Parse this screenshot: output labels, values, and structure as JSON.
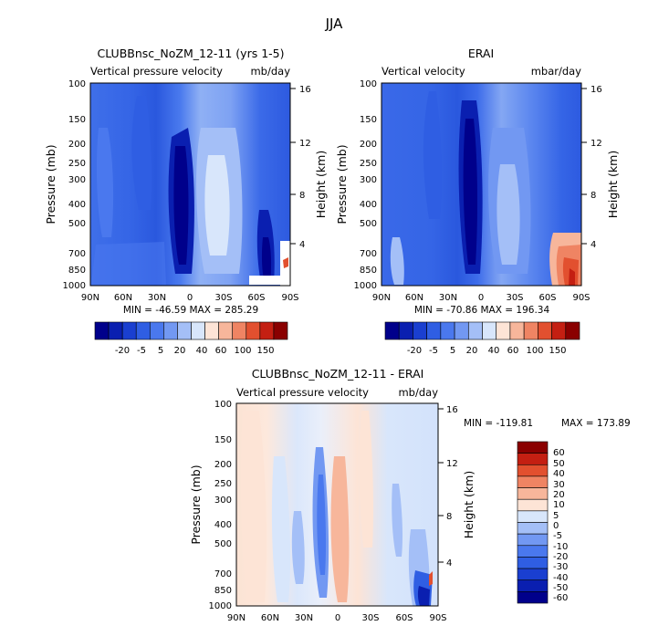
{
  "figure": {
    "title": "JJA"
  },
  "colors": {
    "palette_13": [
      "#00008b",
      "#0a1fb0",
      "#1a3fd0",
      "#2f5ee3",
      "#4a78ee",
      "#7298f2",
      "#a4bff7",
      "#d8e6fb",
      "#fde4d6",
      "#f7b69b",
      "#ef8463",
      "#e2502f",
      "#c41f12",
      "#8a0000"
    ],
    "palette_diff": [
      "#00008b",
      "#0a1fb0",
      "#1a3fd0",
      "#2f5ee3",
      "#4a78ee",
      "#7298f2",
      "#a4bff7",
      "#d8e6fb",
      "#fde4d6",
      "#f7b69b",
      "#ef8463",
      "#e2502f",
      "#c41f12",
      "#8a0000"
    ]
  },
  "chart_data": [
    {
      "type": "heatmap",
      "title": "CLUBBnsc_NoZM_12-11 (yrs 1-5)",
      "subtitle_left": "Vertical pressure velocity",
      "subtitle_right": "mb/day",
      "ylabel": "Pressure (mb)",
      "ylabel_right": "Height (km)",
      "x_ticks": [
        "90N",
        "60N",
        "30N",
        "0",
        "30S",
        "60S",
        "90S"
      ],
      "y_ticks": [
        "100",
        "150",
        "200",
        "250",
        "300",
        "400",
        "500",
        "700",
        "850",
        "1000"
      ],
      "height_ticks": [
        "16",
        "12",
        "8",
        "4"
      ],
      "stats": "MIN = -46.59   MAX = 285.29",
      "colorbar_labels": [
        "-20",
        "-5",
        "5",
        "20",
        "40",
        "60",
        "100",
        "150"
      ]
    },
    {
      "type": "heatmap",
      "title": "ERAI",
      "subtitle_left": "Vertical velocity",
      "subtitle_right": "mbar/day",
      "ylabel": "Pressure (mb)",
      "ylabel_right": "Height (km)",
      "x_ticks": [
        "90N",
        "60N",
        "30N",
        "0",
        "30S",
        "60S",
        "90S"
      ],
      "y_ticks": [
        "100",
        "150",
        "200",
        "250",
        "300",
        "400",
        "500",
        "700",
        "850",
        "1000"
      ],
      "height_ticks": [
        "16",
        "12",
        "8",
        "4"
      ],
      "stats": "MIN = -70.86   MAX = 196.34",
      "colorbar_labels": [
        "-20",
        "-5",
        "5",
        "20",
        "40",
        "60",
        "100",
        "150"
      ]
    },
    {
      "type": "heatmap",
      "title": "CLUBBnsc_NoZM_12-11 - ERAI",
      "subtitle_left": "Vertical pressure velocity",
      "subtitle_right": "mb/day",
      "ylabel": "Pressure (mb)",
      "ylabel_right": "Height (km)",
      "x_ticks": [
        "90N",
        "60N",
        "30N",
        "0",
        "30S",
        "60S",
        "90S"
      ],
      "y_ticks": [
        "100",
        "150",
        "200",
        "250",
        "300",
        "400",
        "500",
        "700",
        "850",
        "1000"
      ],
      "height_ticks": [
        "16",
        "12",
        "8",
        "4"
      ],
      "stats_min": "MIN = -119.81",
      "stats_max": "MAX = 173.89",
      "colorbar_labels": [
        "60",
        "50",
        "40",
        "30",
        "20",
        "10",
        "5",
        "0",
        "-5",
        "-10",
        "-20",
        "-30",
        "-40",
        "-50",
        "-60"
      ]
    }
  ]
}
